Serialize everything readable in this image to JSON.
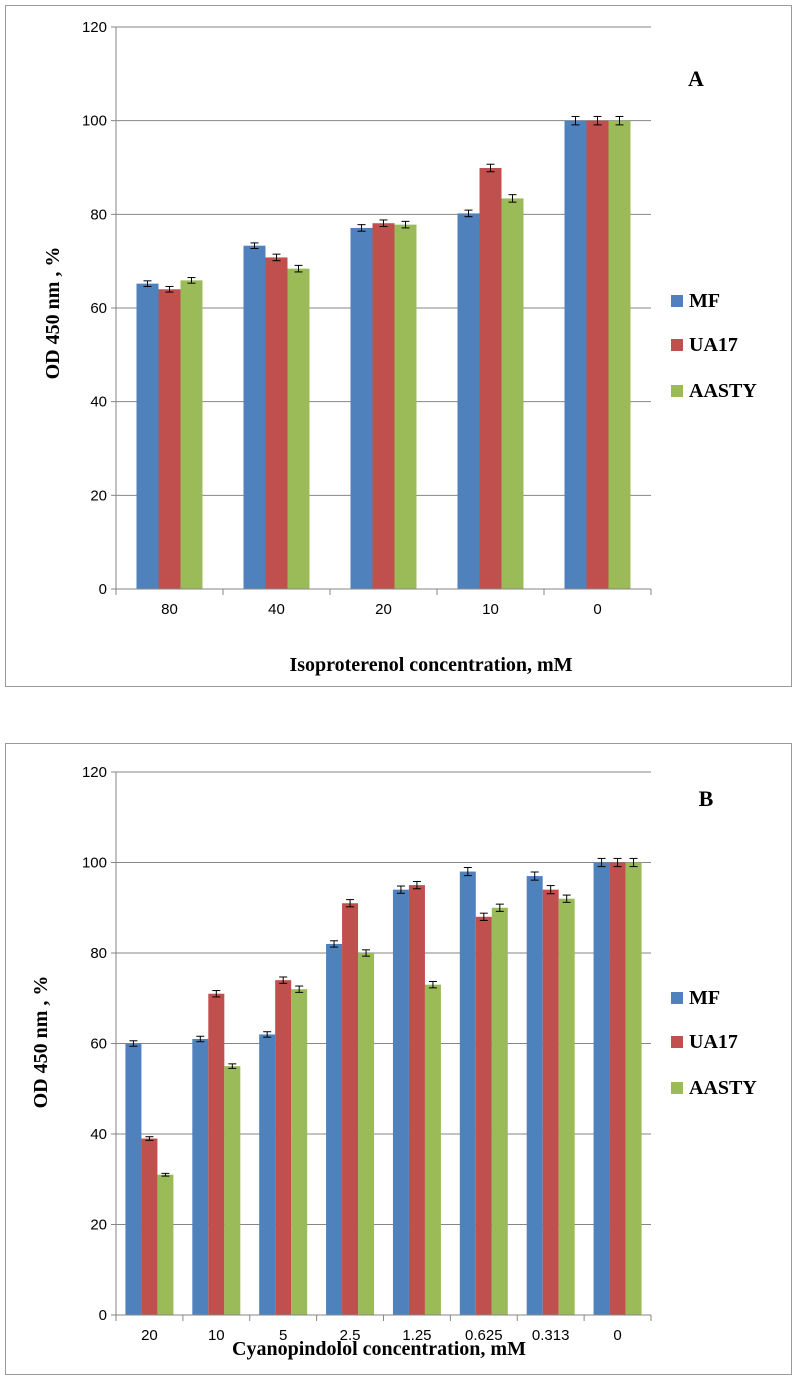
{
  "chart_data": [
    {
      "type": "bar",
      "panel_label": "A",
      "title": "",
      "xlabel": "Isoproterenol concentration, mM",
      "ylabel": "OD 450 nm , %",
      "ylim": [
        0,
        120
      ],
      "yticks": [
        0,
        20,
        40,
        60,
        80,
        100,
        120
      ],
      "grid": "horizontal",
      "legend_position": "right",
      "categories": [
        "80",
        "40",
        "20",
        "10",
        "0"
      ],
      "series": [
        {
          "name": "MF",
          "color": "#4f81bd",
          "values": [
            65.2,
            73.3,
            77.1,
            80.2,
            100
          ],
          "errors": [
            0.6,
            0.6,
            0.7,
            0.7,
            0.9
          ]
        },
        {
          "name": "UA17",
          "color": "#c0504d",
          "values": [
            64.0,
            70.8,
            78.1,
            89.9,
            100
          ],
          "errors": [
            0.6,
            0.7,
            0.7,
            0.8,
            0.9
          ]
        },
        {
          "name": "AASTY",
          "color": "#9bbb59",
          "values": [
            65.9,
            68.4,
            77.8,
            83.4,
            100
          ],
          "errors": [
            0.6,
            0.7,
            0.7,
            0.8,
            0.9
          ]
        }
      ]
    },
    {
      "type": "bar",
      "panel_label": "B",
      "title": "",
      "xlabel": "Cyanopindolol concentration, mM",
      "ylabel": "OD 450 nm , %",
      "ylim": [
        0,
        120
      ],
      "yticks": [
        0,
        20,
        40,
        60,
        80,
        100,
        120
      ],
      "grid": "horizontal",
      "legend_position": "right",
      "categories": [
        "20",
        "10",
        "5",
        "2.5",
        "1.25",
        "0.625",
        "0.313",
        "0"
      ],
      "series": [
        {
          "name": "MF",
          "color": "#4f81bd",
          "values": [
            60,
            61,
            62,
            82,
            94,
            98,
            97,
            100
          ],
          "errors": [
            0.6,
            0.6,
            0.6,
            0.7,
            0.8,
            0.9,
            0.9,
            0.9
          ]
        },
        {
          "name": "UA17",
          "color": "#c0504d",
          "values": [
            39,
            71,
            74,
            91,
            95,
            88,
            94,
            100
          ],
          "errors": [
            0.4,
            0.7,
            0.7,
            0.8,
            0.8,
            0.8,
            0.9,
            0.9
          ]
        },
        {
          "name": "AASTY",
          "color": "#9bbb59",
          "values": [
            31,
            55,
            72,
            80,
            73,
            90,
            92,
            100
          ],
          "errors": [
            0.3,
            0.5,
            0.7,
            0.7,
            0.7,
            0.8,
            0.8,
            0.9
          ]
        }
      ]
    }
  ]
}
